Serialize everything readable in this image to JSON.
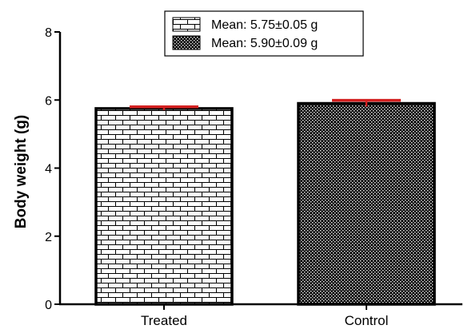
{
  "chart_data": {
    "type": "bar",
    "title": "",
    "xlabel": "",
    "ylabel": "Body weight (g)",
    "ylim": [
      0,
      8
    ],
    "yticks": [
      0,
      2,
      4,
      6,
      8
    ],
    "categories": [
      "Treated",
      "Control"
    ],
    "values": [
      5.75,
      5.9
    ],
    "errors": [
      0.05,
      0.09
    ],
    "legend": {
      "placement": "top-center",
      "entries": [
        "Mean: 5.75±0.05 g",
        "Mean: 5.90±0.09 g"
      ]
    },
    "patterns": [
      "brick",
      "dots"
    ],
    "colors": {
      "axis": "#000000",
      "bar_outline": "#000000",
      "error_bar": "#d42020",
      "pattern_brick_fill": "#ffffff",
      "pattern_dot_fill": "#ffffff"
    }
  }
}
